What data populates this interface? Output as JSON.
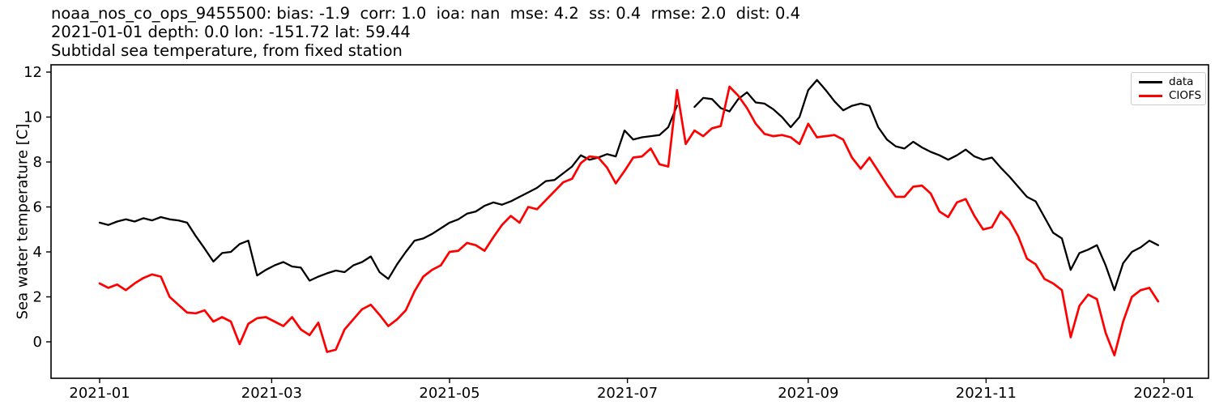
{
  "header": {
    "title_line1": "noaa_nos_co_ops_9455500: bias: -1.9  corr: 1.0  ioa: nan  mse: 4.2  ss: 0.4  rmse: 2.0  dist: 0.4",
    "title_line2": "2021-01-01 depth: 0.0 lon: -151.72 lat: 59.44",
    "title_line3": "Subtidal sea temperature, from fixed station"
  },
  "legend": {
    "items": [
      {
        "label": "data",
        "color": "#000000"
      },
      {
        "label": "CIOFS",
        "color": "#ff0000"
      }
    ]
  },
  "chart_data": {
    "type": "line",
    "title": "noaa_nos_co_ops_9455500: bias: -1.9  corr: 1.0  ioa: nan  mse: 4.2  ss: 0.4  rmse: 2.0  dist: 0.4",
    "subtitle1": "2021-01-01 depth: 0.0 lon: -151.72 lat: 59.44",
    "subtitle2": "Subtidal sea temperature, from fixed station",
    "xlabel": "",
    "ylabel": "Sea water temperature [C]",
    "grid": false,
    "legend_position": "upper right",
    "x_unit": "days since 2021-01-01",
    "x_step_days": 3,
    "xlim_days": [
      -16.7,
      380.3
    ],
    "ylim": [
      -1.62,
      12.32
    ],
    "y_ticks": [
      0,
      2,
      4,
      6,
      8,
      10,
      12
    ],
    "x_ticks": [
      {
        "label": "2021-01",
        "day": 0
      },
      {
        "label": "2021-03",
        "day": 59
      },
      {
        "label": "2021-05",
        "day": 120
      },
      {
        "label": "2021-07",
        "day": 181
      },
      {
        "label": "2021-09",
        "day": 243
      },
      {
        "label": "2021-11",
        "day": 304
      },
      {
        "label": "2022-01",
        "day": 365
      }
    ],
    "series": [
      {
        "name": "data",
        "color": "#000000",
        "line_width": 2.3,
        "values": [
          5.3,
          5.2,
          5.35,
          5.45,
          5.35,
          5.5,
          5.4,
          5.55,
          5.45,
          5.4,
          5.3,
          4.7,
          4.15,
          3.57,
          3.95,
          4.0,
          4.35,
          4.5,
          2.95,
          3.2,
          3.4,
          3.55,
          3.35,
          3.3,
          2.72,
          2.9,
          3.05,
          3.17,
          3.1,
          3.4,
          3.55,
          3.8,
          3.1,
          2.8,
          3.45,
          4.0,
          4.5,
          4.6,
          4.8,
          5.05,
          5.3,
          5.45,
          5.7,
          5.8,
          6.05,
          6.2,
          6.1,
          6.25,
          6.45,
          6.65,
          6.85,
          7.15,
          7.2,
          7.5,
          7.8,
          8.3,
          8.1,
          8.2,
          8.35,
          8.25,
          9.4,
          9.0,
          9.1,
          9.15,
          9.2,
          9.55,
          10.5,
          null,
          10.45,
          10.85,
          10.8,
          10.4,
          10.25,
          10.8,
          11.1,
          10.65,
          10.6,
          10.35,
          10.0,
          9.55,
          10.0,
          11.2,
          11.65,
          11.2,
          10.7,
          10.3,
          10.5,
          10.6,
          10.5,
          9.55,
          9.0,
          8.7,
          8.6,
          8.9,
          8.65,
          8.45,
          8.3,
          8.1,
          8.3,
          8.55,
          8.25,
          8.1,
          8.2,
          7.75,
          7.35,
          6.9,
          6.45,
          6.25,
          5.55,
          4.85,
          4.6,
          3.2,
          3.95,
          4.1,
          4.3,
          3.4,
          2.3,
          3.5,
          4.0,
          4.2,
          4.5,
          4.3
        ]
      },
      {
        "name": "CIOFS",
        "color": "#ff0000",
        "line_width": 2.7,
        "values": [
          2.6,
          2.4,
          2.55,
          2.3,
          2.6,
          2.84,
          3.0,
          2.9,
          2.0,
          1.65,
          1.3,
          1.27,
          1.4,
          0.9,
          1.1,
          0.9,
          -0.1,
          0.8,
          1.05,
          1.1,
          0.9,
          0.7,
          1.1,
          0.55,
          0.3,
          0.85,
          -0.45,
          -0.35,
          0.55,
          1.0,
          1.45,
          1.65,
          1.2,
          0.7,
          1.0,
          1.4,
          2.25,
          2.9,
          3.2,
          3.4,
          4.0,
          4.05,
          4.4,
          4.3,
          4.05,
          4.65,
          5.2,
          5.6,
          5.3,
          6.0,
          5.9,
          6.3,
          6.7,
          7.1,
          7.25,
          7.95,
          8.25,
          8.2,
          7.75,
          7.05,
          7.6,
          8.2,
          8.25,
          8.6,
          7.9,
          7.8,
          11.2,
          8.8,
          9.4,
          9.15,
          9.5,
          9.6,
          11.35,
          10.95,
          10.4,
          9.7,
          9.25,
          9.15,
          9.2,
          9.1,
          8.8,
          9.7,
          9.1,
          9.15,
          9.2,
          9.0,
          8.2,
          7.7,
          8.2,
          7.6,
          7.0,
          6.45,
          6.45,
          6.9,
          6.95,
          6.6,
          5.8,
          5.55,
          6.2,
          6.35,
          5.6,
          5.0,
          5.1,
          5.8,
          5.4,
          4.7,
          3.7,
          3.45,
          2.8,
          2.6,
          2.3,
          0.2,
          1.6,
          2.1,
          1.9,
          0.4,
          -0.6,
          0.9,
          2.0,
          2.3,
          2.4,
          1.8
        ]
      }
    ]
  }
}
